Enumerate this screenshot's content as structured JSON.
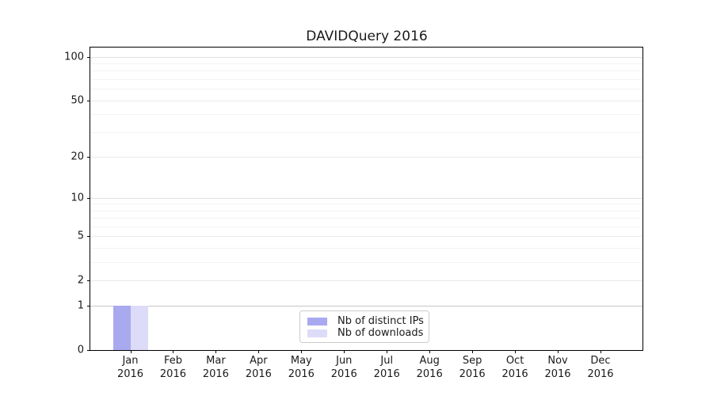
{
  "chart_data": {
    "type": "bar",
    "title": "DAVIDQuery 2016",
    "categories": [
      "Jan 2016",
      "Feb 2016",
      "Mar 2016",
      "Apr 2016",
      "May 2016",
      "Jun 2016",
      "Jul 2016",
      "Aug 2016",
      "Sep 2016",
      "Oct 2016",
      "Nov 2016",
      "Dec 2016"
    ],
    "series": [
      {
        "name": "Nb of distinct IPs",
        "color": "#a9a9f0",
        "values": [
          1,
          0,
          0,
          0,
          0,
          0,
          0,
          0,
          0,
          0,
          0,
          0
        ]
      },
      {
        "name": "Nb of downloads",
        "color": "#dcdcf8",
        "values": [
          1,
          0,
          0,
          0,
          0,
          0,
          0,
          0,
          0,
          0,
          0,
          0
        ]
      }
    ],
    "xlabel": "",
    "ylabel": "",
    "yscale": "log1p",
    "ylim": [
      0,
      116
    ],
    "yticks": [
      100,
      50,
      20,
      10,
      5,
      2,
      1,
      0
    ],
    "minor_yticks": [
      90,
      80,
      70,
      60,
      40,
      30,
      9,
      8,
      7,
      6,
      4,
      3
    ],
    "grid": "horizontal",
    "legend_position": "lower-center-inside",
    "colors": {
      "background": "#ffffff",
      "spine": "#000000",
      "text": "#1a1a1a",
      "grid_major": "#e9e9e9",
      "grid_minor": "#f3f3f3",
      "grid_level_one": "#c6c6c6"
    }
  }
}
